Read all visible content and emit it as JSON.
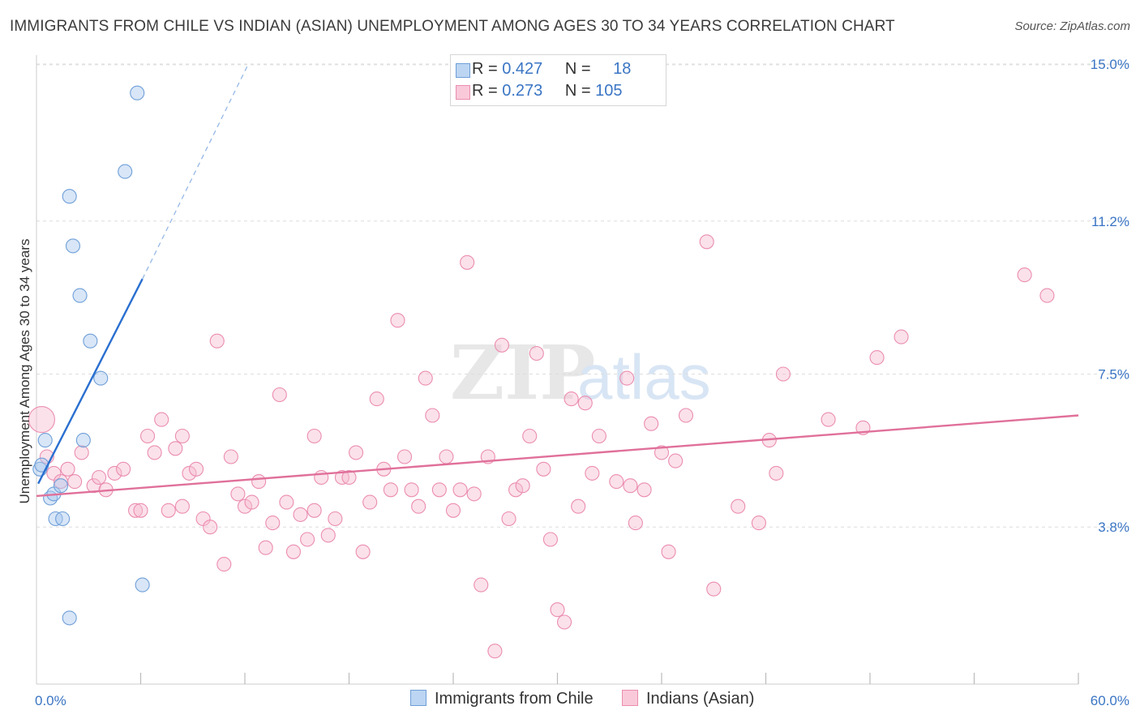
{
  "chart_data": {
    "type": "scatter",
    "title": "IMMIGRANTS FROM CHILE VS INDIAN (ASIAN) UNEMPLOYMENT AMONG AGES 30 TO 34 YEARS CORRELATION CHART",
    "source": "Source: ZipAtlas.com",
    "xlabel": "",
    "ylabel": "Unemployment Among Ages 30 to 34 years",
    "xlim": [
      0,
      60
    ],
    "ylim": [
      0,
      15.0
    ],
    "x_tick_labels": [
      "0.0%",
      "60.0%"
    ],
    "y_ticks": [
      3.8,
      7.5,
      11.2,
      15.0
    ],
    "y_tick_labels": [
      "3.8%",
      "7.5%",
      "11.2%",
      "15.0%"
    ],
    "grid": true,
    "watermark": {
      "zip": "ZIP",
      "atlas": "atlas"
    },
    "series": [
      {
        "name": "Immigrants from Chile",
        "color": "#a8c8ee",
        "stroke": "#6f9fd8",
        "line_color": "#2a6fd0",
        "R": "0.427",
        "N": "18",
        "trend": {
          "x1": 0.1,
          "y1": 4.85,
          "x2": 6.1,
          "y2": 9.8,
          "dash_to_x": 12.2,
          "dash_to_y": 15.0
        },
        "points": [
          [
            0.2,
            5.2
          ],
          [
            0.3,
            5.3
          ],
          [
            0.5,
            5.9
          ],
          [
            0.8,
            4.5
          ],
          [
            1.0,
            4.6
          ],
          [
            1.1,
            4.0
          ],
          [
            1.4,
            4.8
          ],
          [
            1.5,
            4.0
          ],
          [
            1.9,
            11.8
          ],
          [
            2.1,
            10.6
          ],
          [
            2.5,
            9.4
          ],
          [
            2.7,
            5.9
          ],
          [
            3.1,
            8.3
          ],
          [
            3.7,
            7.4
          ],
          [
            5.1,
            12.4
          ],
          [
            5.8,
            14.3
          ],
          [
            6.1,
            2.4
          ],
          [
            1.9,
            1.6
          ]
        ]
      },
      {
        "name": "Indians (Asian)",
        "color": "#f7bcd0",
        "stroke": "#eb8db0",
        "line_color": "#e0709a",
        "R": "0.273",
        "N": "105",
        "trend": {
          "x1": 0.0,
          "y1": 4.55,
          "x2": 60.0,
          "y2": 6.5
        },
        "points": [
          [
            0.3,
            6.4
          ],
          [
            0.6,
            5.5
          ],
          [
            1.0,
            5.1
          ],
          [
            1.4,
            4.9
          ],
          [
            1.8,
            5.2
          ],
          [
            2.2,
            4.9
          ],
          [
            2.6,
            5.6
          ],
          [
            3.3,
            4.8
          ],
          [
            3.6,
            5.0
          ],
          [
            4.0,
            4.7
          ],
          [
            4.5,
            5.1
          ],
          [
            5.0,
            5.2
          ],
          [
            5.7,
            4.2
          ],
          [
            6.0,
            4.2
          ],
          [
            6.4,
            6.0
          ],
          [
            6.8,
            5.6
          ],
          [
            7.2,
            6.4
          ],
          [
            7.6,
            4.2
          ],
          [
            8.0,
            5.7
          ],
          [
            8.4,
            4.3
          ],
          [
            8.8,
            5.1
          ],
          [
            9.2,
            5.2
          ],
          [
            9.6,
            4.0
          ],
          [
            10.0,
            3.8
          ],
          [
            10.4,
            8.3
          ],
          [
            10.8,
            2.9
          ],
          [
            11.2,
            5.5
          ],
          [
            11.6,
            4.6
          ],
          [
            12.0,
            4.3
          ],
          [
            12.4,
            4.4
          ],
          [
            12.8,
            4.9
          ],
          [
            13.2,
            3.3
          ],
          [
            13.6,
            3.9
          ],
          [
            14.0,
            7.0
          ],
          [
            14.4,
            4.4
          ],
          [
            14.8,
            3.2
          ],
          [
            15.2,
            4.1
          ],
          [
            15.6,
            3.5
          ],
          [
            16.0,
            4.2
          ],
          [
            16.4,
            5.0
          ],
          [
            16.8,
            3.6
          ],
          [
            17.2,
            4.0
          ],
          [
            17.6,
            5.0
          ],
          [
            18.0,
            5.0
          ],
          [
            18.4,
            5.6
          ],
          [
            18.8,
            3.2
          ],
          [
            19.2,
            4.4
          ],
          [
            19.6,
            6.9
          ],
          [
            20.0,
            5.2
          ],
          [
            20.4,
            4.7
          ],
          [
            20.8,
            8.8
          ],
          [
            21.2,
            5.5
          ],
          [
            21.6,
            4.7
          ],
          [
            22.0,
            4.3
          ],
          [
            22.4,
            7.4
          ],
          [
            22.8,
            6.5
          ],
          [
            23.2,
            4.7
          ],
          [
            23.6,
            5.5
          ],
          [
            24.0,
            4.2
          ],
          [
            24.4,
            4.7
          ],
          [
            24.8,
            10.2
          ],
          [
            25.2,
            4.6
          ],
          [
            25.6,
            2.4
          ],
          [
            26.0,
            5.5
          ],
          [
            26.4,
            0.8
          ],
          [
            26.8,
            8.2
          ],
          [
            27.2,
            4.0
          ],
          [
            27.6,
            4.7
          ],
          [
            28.0,
            4.8
          ],
          [
            28.4,
            6.0
          ],
          [
            28.8,
            8.0
          ],
          [
            29.2,
            5.2
          ],
          [
            29.6,
            3.5
          ],
          [
            30.0,
            1.8
          ],
          [
            30.4,
            1.5
          ],
          [
            30.8,
            6.9
          ],
          [
            31.2,
            4.3
          ],
          [
            31.6,
            6.8
          ],
          [
            32.0,
            5.1
          ],
          [
            32.4,
            6.0
          ],
          [
            33.4,
            4.9
          ],
          [
            34.0,
            7.4
          ],
          [
            34.5,
            3.9
          ],
          [
            35.0,
            4.7
          ],
          [
            35.4,
            6.3
          ],
          [
            36.0,
            5.6
          ],
          [
            36.4,
            3.2
          ],
          [
            36.8,
            5.4
          ],
          [
            37.4,
            6.5
          ],
          [
            38.6,
            10.7
          ],
          [
            39.0,
            2.3
          ],
          [
            40.4,
            4.3
          ],
          [
            41.6,
            3.9
          ],
          [
            42.2,
            5.9
          ],
          [
            42.6,
            5.1
          ],
          [
            43.0,
            7.5
          ],
          [
            45.6,
            6.4
          ],
          [
            47.6,
            6.2
          ],
          [
            48.4,
            7.9
          ],
          [
            49.8,
            8.4
          ],
          [
            58.2,
            9.4
          ],
          [
            56.9,
            9.9
          ],
          [
            34.2,
            4.8
          ],
          [
            8.4,
            6.0
          ],
          [
            16.0,
            6.0
          ]
        ]
      }
    ]
  }
}
